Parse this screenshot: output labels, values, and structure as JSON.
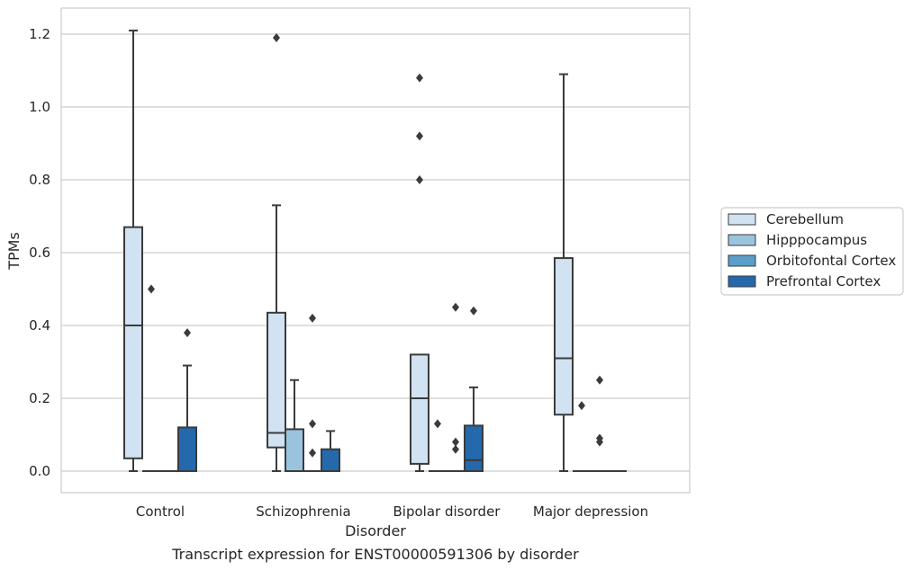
{
  "chart_data": {
    "type": "box",
    "xlabel": "Disorder",
    "ylabel": "TPMs",
    "caption": "Transcript expression for ENST00000591306 by disorder",
    "categories": [
      "Control",
      "Schizophrenia",
      "Bipolar disorder",
      "Major depression"
    ],
    "ylim": [
      -0.06,
      1.27
    ],
    "yticks": [
      "0.0",
      "0.2",
      "0.4",
      "0.6",
      "0.8",
      "1.0",
      "1.2"
    ],
    "ytick_values": [
      0.0,
      0.2,
      0.4,
      0.6,
      0.8,
      1.0,
      1.2
    ],
    "grid": "horizontal",
    "legend_position": "right",
    "series": [
      {
        "name": "Cerebellum",
        "color": "#d1e2f2",
        "boxes": [
          {
            "category": "Control",
            "q1": 0.035,
            "median": 0.4,
            "q3": 0.67,
            "whisker_low": 0.0,
            "whisker_high": 1.21,
            "outliers": []
          },
          {
            "category": "Schizophrenia",
            "q1": 0.065,
            "median": 0.105,
            "q3": 0.435,
            "whisker_low": 0.0,
            "whisker_high": 0.73,
            "outliers": [
              1.19
            ]
          },
          {
            "category": "Bipolar disorder",
            "q1": 0.02,
            "median": 0.2,
            "q3": 0.32,
            "whisker_low": 0.0,
            "whisker_high": 0.32,
            "outliers": [
              0.8,
              0.92,
              1.08
            ]
          },
          {
            "category": "Major depression",
            "q1": 0.155,
            "median": 0.31,
            "q3": 0.585,
            "whisker_low": 0.0,
            "whisker_high": 1.09,
            "outliers": []
          }
        ]
      },
      {
        "name": "Hipppocampus",
        "color": "#9ac3de",
        "boxes": [
          {
            "category": "Control",
            "q1": 0.0,
            "median": 0.0,
            "q3": 0.0,
            "whisker_low": 0.0,
            "whisker_high": 0.0,
            "outliers": [
              0.5
            ]
          },
          {
            "category": "Schizophrenia",
            "q1": 0.0,
            "median": 0.0,
            "q3": 0.115,
            "whisker_low": 0.0,
            "whisker_high": 0.25,
            "outliers": []
          },
          {
            "category": "Bipolar disorder",
            "q1": 0.0,
            "median": 0.0,
            "q3": 0.0,
            "whisker_low": 0.0,
            "whisker_high": 0.0,
            "outliers": [
              0.13
            ]
          },
          {
            "category": "Major depression",
            "q1": 0.0,
            "median": 0.0,
            "q3": 0.0,
            "whisker_low": 0.0,
            "whisker_high": 0.0,
            "outliers": [
              0.18
            ]
          }
        ]
      },
      {
        "name": "Orbitofontal Cortex",
        "color": "#5a9ec9",
        "boxes": [
          {
            "category": "Control",
            "q1": 0.0,
            "median": 0.0,
            "q3": 0.0,
            "whisker_low": 0.0,
            "whisker_high": 0.0,
            "outliers": []
          },
          {
            "category": "Schizophrenia",
            "q1": 0.0,
            "median": 0.0,
            "q3": 0.0,
            "whisker_low": 0.0,
            "whisker_high": 0.0,
            "outliers": [
              0.05,
              0.13,
              0.42
            ]
          },
          {
            "category": "Bipolar disorder",
            "q1": 0.0,
            "median": 0.0,
            "q3": 0.0,
            "whisker_low": 0.0,
            "whisker_high": 0.0,
            "outliers": [
              0.06,
              0.08,
              0.45
            ]
          },
          {
            "category": "Major depression",
            "q1": 0.0,
            "median": 0.0,
            "q3": 0.0,
            "whisker_low": 0.0,
            "whisker_high": 0.0,
            "outliers": [
              0.08,
              0.09,
              0.25
            ]
          }
        ]
      },
      {
        "name": "Prefrontal Cortex",
        "color": "#2469ab",
        "boxes": [
          {
            "category": "Control",
            "q1": 0.0,
            "median": 0.0,
            "q3": 0.12,
            "whisker_low": 0.0,
            "whisker_high": 0.29,
            "outliers": [
              0.38
            ]
          },
          {
            "category": "Schizophrenia",
            "q1": 0.0,
            "median": 0.0,
            "q3": 0.06,
            "whisker_low": 0.0,
            "whisker_high": 0.11,
            "outliers": []
          },
          {
            "category": "Bipolar disorder",
            "q1": 0.0,
            "median": 0.03,
            "q3": 0.125,
            "whisker_low": 0.0,
            "whisker_high": 0.23,
            "outliers": [
              0.44
            ]
          },
          {
            "category": "Major depression",
            "q1": 0.0,
            "median": 0.0,
            "q3": 0.0,
            "whisker_low": 0.0,
            "whisker_high": 0.0,
            "outliers": []
          }
        ]
      }
    ]
  }
}
